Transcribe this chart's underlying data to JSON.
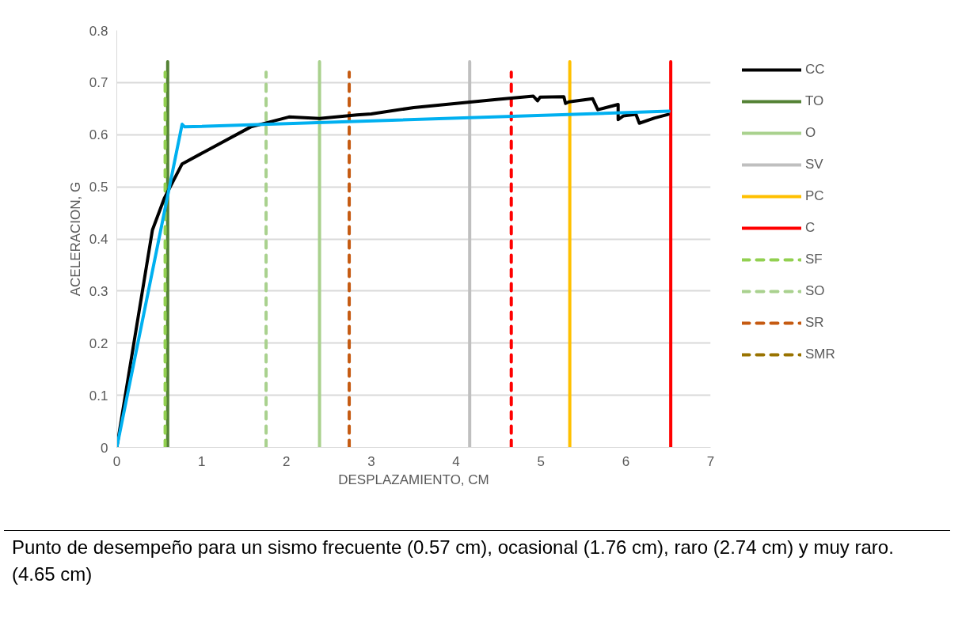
{
  "chart_data": {
    "type": "line",
    "xlabel": "DESPLAZAMIENTO, CM",
    "ylabel": "ACELERACION, G",
    "xlim": [
      0,
      7
    ],
    "ylim": [
      0,
      0.8
    ],
    "xticks": [
      0,
      1,
      2,
      3,
      4,
      5,
      6,
      7
    ],
    "yticks": [
      0,
      0.1,
      0.2,
      0.3,
      0.4,
      0.5,
      0.6,
      0.7,
      0.8
    ],
    "grid": "y",
    "legend": "right",
    "line_style": "solid",
    "series": [
      {
        "name": "TO",
        "color": "#548235",
        "x": [
          0.6,
          0.6
        ],
        "values": [
          0,
          0.74
        ]
      },
      {
        "name": "O",
        "color": "#a9d18e",
        "x": [
          2.39,
          2.39
        ],
        "values": [
          0,
          0.74
        ]
      },
      {
        "name": "SV",
        "color": "#bfbfbf",
        "x": [
          4.16,
          4.16
        ],
        "values": [
          0,
          0.74
        ]
      },
      {
        "name": "PC",
        "color": "#ffc000",
        "x": [
          5.34,
          5.34
        ],
        "values": [
          0,
          0.74
        ]
      },
      {
        "name": "C",
        "color": "#ff0000",
        "x": [
          6.53,
          6.53
        ],
        "values": [
          0,
          0.74
        ]
      },
      {
        "name": "SF",
        "color": "#92d050",
        "line_style": "dashed",
        "x": [
          0.57,
          0.57
        ],
        "values": [
          0,
          0.72
        ]
      },
      {
        "name": "SO",
        "color": "#a9d18e",
        "line_style": "dashed",
        "x": [
          1.76,
          1.76
        ],
        "values": [
          0,
          0.72
        ]
      },
      {
        "name": "SR",
        "color": "#c55a11",
        "line_style": "dashed",
        "x": [
          2.74,
          2.74
        ],
        "values": [
          0,
          0.72
        ]
      },
      {
        "name": "SMR",
        "color": "#997300",
        "line_style": "dashed"
      },
      {
        "color": "#ff0000",
        "line_style": "dashed",
        "x": [
          4.65,
          4.65
        ],
        "values": [
          0,
          0.72
        ]
      },
      {
        "name": "CC",
        "color": "#000000",
        "x": [
          0,
          0.42,
          0.56,
          0.77,
          1.58,
          2.03,
          2.39,
          2.83,
          3.0,
          3.5,
          4.0,
          4.5,
          4.91,
          4.96,
          4.99,
          5.27,
          5.29,
          5.33,
          5.61,
          5.67,
          5.91,
          5.91,
          5.97,
          6.12,
          6.16,
          6.34,
          6.5
        ],
        "values": [
          0,
          0.417,
          0.478,
          0.544,
          0.615,
          0.634,
          0.631,
          0.638,
          0.64,
          0.652,
          0.66,
          0.668,
          0.674,
          0.665,
          0.672,
          0.673,
          0.66,
          0.663,
          0.669,
          0.648,
          0.658,
          0.629,
          0.636,
          0.639,
          0.622,
          0.632,
          0.639
        ]
      },
      {
        "color": "#00b0f0",
        "x": [
          0,
          0.77,
          0.8,
          6.51
        ],
        "values": [
          0,
          0.62,
          0.615,
          0.645
        ]
      }
    ],
    "annotations": [
      "Punto de desempeño para un sismo frecuente (0.57 cm), ocasional (1.76 cm), raro (2.74 cm) y muy raro. (4.65 cm)"
    ]
  }
}
